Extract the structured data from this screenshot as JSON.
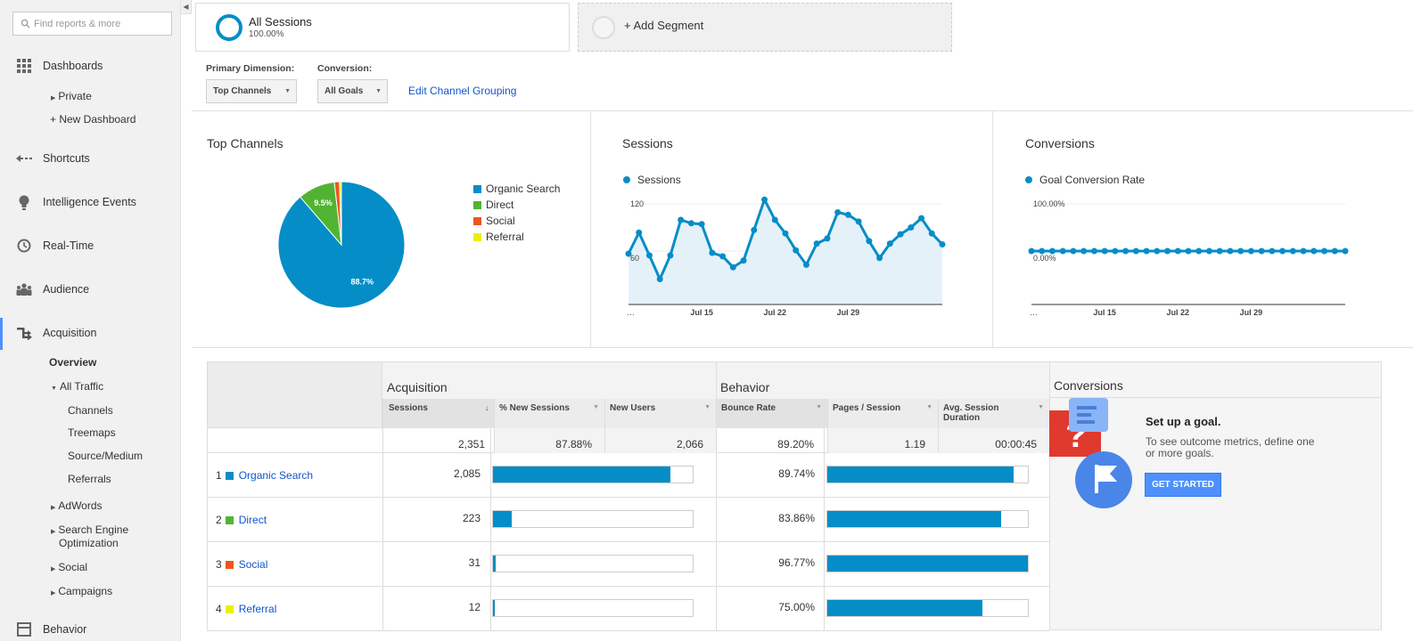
{
  "sidebar": {
    "search_placeholder": "Find reports & more",
    "dashboards": "Dashboards",
    "private": "Private",
    "new_dashboard": "+ New Dashboard",
    "shortcuts": "Shortcuts",
    "intelligence": "Intelligence Events",
    "realtime": "Real-Time",
    "audience": "Audience",
    "acquisition": "Acquisition",
    "overview": "Overview",
    "all_traffic": "All Traffic",
    "channels": "Channels",
    "treemaps": "Treemaps",
    "source_medium": "Source/Medium",
    "referrals": "Referrals",
    "adwords": "AdWords",
    "seo_1": "Search Engine",
    "seo_2": "Optimization",
    "social": "Social",
    "campaigns": "Campaigns",
    "behavior": "Behavior"
  },
  "segments": {
    "all_sessions": "All Sessions",
    "all_sessions_pct": "100.00%",
    "add_segment": "+ Add Segment"
  },
  "controls": {
    "primary_dimension_label": "Primary Dimension:",
    "primary_dimension_value": "Top Channels",
    "conversion_label": "Conversion:",
    "conversion_value": "All Goals",
    "edit_link": "Edit Channel Grouping"
  },
  "panels": {
    "top_channels_title": "Top Channels",
    "sessions_title": "Sessions",
    "conversions_title": "Conversions"
  },
  "chart_data": [
    {
      "type": "pie",
      "title": "Top Channels",
      "labels": [
        "Organic Search",
        "Direct",
        "Social",
        "Referral"
      ],
      "values": [
        88.7,
        9.5,
        1.3,
        0.5
      ],
      "colors": [
        "#058dc7",
        "#50b432",
        "#ed561b",
        "#edef00"
      ],
      "slice_labels": [
        "88.7%",
        "9.5%",
        "",
        ""
      ],
      "legend": "right"
    },
    {
      "type": "area",
      "legend_label": "Sessions",
      "x_start": "…",
      "x_ticks": [
        "Jul 15",
        "Jul 22",
        "Jul 29"
      ],
      "y_ticks": [
        "120",
        "60"
      ],
      "ylim": [
        0,
        120
      ],
      "values": [
        60,
        85,
        58,
        30,
        58,
        100,
        96,
        95,
        61,
        57,
        44,
        52,
        88,
        124,
        100,
        84,
        64,
        47,
        72,
        78,
        109,
        106,
        98,
        75,
        55,
        72,
        83,
        91,
        102,
        84,
        71
      ]
    },
    {
      "type": "line",
      "legend_label": "Goal Conversion Rate",
      "x_start": "…",
      "x_ticks": [
        "Jul 15",
        "Jul 22",
        "Jul 29"
      ],
      "y_ticks": [
        "100.00%",
        "0.00%"
      ],
      "points": 31,
      "value": 0
    }
  ],
  "table": {
    "group_acquisition": "Acquisition",
    "group_behavior": "Behavior",
    "group_conversions": "Conversions",
    "col_sessions": "Sessions",
    "col_new_sessions": "% New Sessions",
    "col_new_users": "New Users",
    "col_bounce": "Bounce Rate",
    "col_pages": "Pages / Session",
    "col_duration_1": "Avg. Session",
    "col_duration_2": "Duration",
    "totals": {
      "sessions": "2,351",
      "new_sessions": "87.88%",
      "new_users": "2,066",
      "bounce": "89.20%",
      "pages": "1.19",
      "duration": "00:00:45"
    },
    "rows": [
      {
        "rank": "1",
        "name": "Organic Search",
        "color": "#058dc7",
        "sessions": "2,085",
        "bounce": "89.74%"
      },
      {
        "rank": "2",
        "name": "Direct",
        "color": "#50b432",
        "sessions": "223",
        "bounce": "83.86%"
      },
      {
        "rank": "3",
        "name": "Social",
        "color": "#ed561b",
        "sessions": "31",
        "bounce": "96.77%"
      },
      {
        "rank": "4",
        "name": "Referral",
        "color": "#edef00",
        "sessions": "12",
        "bounce": "75.00%"
      }
    ],
    "session_bars": [
      0.887,
      0.095,
      0.013,
      0.005
    ],
    "bounce_bars": [
      0.927,
      0.867,
      1.0,
      0.775
    ],
    "goal_title": "Set up a goal.",
    "goal_desc": "To see outcome metrics, define one or more goals.",
    "get_started": "GET STARTED"
  }
}
